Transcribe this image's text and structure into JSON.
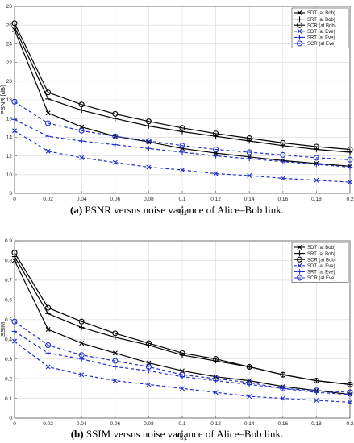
{
  "chart_data": [
    {
      "type": "line",
      "panel": "a",
      "caption_label": "(a)",
      "caption_text": "PSNR versus noise variance of Alice–Bob link.",
      "xlabel": "σ²B,1",
      "ylabel": "PSNR [dB]",
      "x": [
        0,
        0.02,
        0.04,
        0.06,
        0.08,
        0.1,
        0.12,
        0.14,
        0.16,
        0.18,
        0.2
      ],
      "xlim": [
        0,
        0.2
      ],
      "ylim": [
        8,
        28
      ],
      "xticks": [
        "0",
        "0.02",
        "0.04",
        "0.06",
        "0.08",
        "0.1",
        "0.12",
        "0.14",
        "0.16",
        "0.18",
        "0.2"
      ],
      "yticks": [
        8,
        10,
        12,
        14,
        16,
        18,
        20,
        22,
        24,
        26,
        28
      ],
      "grid": true,
      "legend_position": "top-right",
      "series": [
        {
          "name": "SDT (at Bob)",
          "color": "#000000",
          "dashed": false,
          "marker": "x",
          "values": [
            25.5,
            16.6,
            15.1,
            14.1,
            13.5,
            12.8,
            12.3,
            11.9,
            11.5,
            11.2,
            10.9
          ]
        },
        {
          "name": "SRT (at Bob)",
          "color": "#000000",
          "dashed": false,
          "marker": "plus",
          "values": [
            25.8,
            18.1,
            16.9,
            16.0,
            15.2,
            14.6,
            14.1,
            13.6,
            13.1,
            12.7,
            12.4
          ]
        },
        {
          "name": "SCR (at Bob)",
          "color": "#000000",
          "dashed": false,
          "marker": "circle",
          "values": [
            26.2,
            18.8,
            17.5,
            16.5,
            15.7,
            15.0,
            14.4,
            13.9,
            13.4,
            13.0,
            12.7
          ]
        },
        {
          "name": "SDT (at Eve)",
          "color": "#1f2fcc",
          "dashed": true,
          "marker": "x",
          "values": [
            14.7,
            12.5,
            11.8,
            11.3,
            10.8,
            10.5,
            10.1,
            9.9,
            9.6,
            9.4,
            9.2
          ]
        },
        {
          "name": "SRT (at Eve)",
          "color": "#1f2fcc",
          "dashed": true,
          "marker": "plus",
          "values": [
            15.9,
            14.1,
            13.6,
            13.2,
            12.8,
            12.4,
            12.0,
            11.7,
            11.4,
            11.1,
            10.8
          ]
        },
        {
          "name": "SCR (at Eve)",
          "color": "#1f2fcc",
          "dashed": true,
          "marker": "circle",
          "values": [
            17.8,
            15.5,
            14.7,
            14.1,
            13.6,
            13.1,
            12.7,
            12.4,
            12.1,
            11.8,
            11.6
          ]
        }
      ]
    },
    {
      "type": "line",
      "panel": "b",
      "caption_label": "(b)",
      "caption_text": "SSIM versus noise variance of Alice–Bob link.",
      "xlabel": "σ²B,1",
      "ylabel": "SSIM",
      "x": [
        0,
        0.02,
        0.04,
        0.06,
        0.08,
        0.1,
        0.12,
        0.14,
        0.16,
        0.18,
        0.2
      ],
      "xlim": [
        0,
        0.2
      ],
      "ylim": [
        0,
        0.9
      ],
      "xticks": [
        "0",
        "0.02",
        "0.04",
        "0.06",
        "0.08",
        "0.1",
        "0.12",
        "0.14",
        "0.16",
        "0.18",
        "0.2"
      ],
      "yticks": [
        0,
        0.1,
        0.2,
        0.3,
        0.4,
        0.5,
        0.6,
        0.7,
        0.8,
        0.9
      ],
      "grid": true,
      "legend_position": "top-right",
      "series": [
        {
          "name": "SDT (at Bob)",
          "color": "#000000",
          "dashed": false,
          "marker": "x",
          "values": [
            0.8,
            0.45,
            0.38,
            0.33,
            0.28,
            0.24,
            0.21,
            0.19,
            0.16,
            0.14,
            0.12
          ]
        },
        {
          "name": "SRT (at Bob)",
          "color": "#000000",
          "dashed": false,
          "marker": "plus",
          "values": [
            0.82,
            0.53,
            0.46,
            0.41,
            0.37,
            0.32,
            0.29,
            0.26,
            0.22,
            0.19,
            0.17
          ]
        },
        {
          "name": "SCR (at Bob)",
          "color": "#000000",
          "dashed": false,
          "marker": "circle",
          "values": [
            0.84,
            0.56,
            0.49,
            0.43,
            0.38,
            0.33,
            0.3,
            0.26,
            0.22,
            0.19,
            0.17
          ]
        },
        {
          "name": "SDT (at Eve)",
          "color": "#1f2fcc",
          "dashed": true,
          "marker": "x",
          "values": [
            0.39,
            0.26,
            0.22,
            0.19,
            0.17,
            0.15,
            0.13,
            0.11,
            0.1,
            0.09,
            0.08
          ]
        },
        {
          "name": "SRT (at Eve)",
          "color": "#1f2fcc",
          "dashed": true,
          "marker": "plus",
          "values": [
            0.44,
            0.33,
            0.3,
            0.26,
            0.24,
            0.21,
            0.19,
            0.17,
            0.15,
            0.13,
            0.12
          ]
        },
        {
          "name": "SCR (at Eve)",
          "color": "#1f2fcc",
          "dashed": true,
          "marker": "circle",
          "values": [
            0.49,
            0.37,
            0.32,
            0.29,
            0.26,
            0.22,
            0.2,
            0.18,
            0.15,
            0.14,
            0.13
          ]
        }
      ]
    }
  ]
}
